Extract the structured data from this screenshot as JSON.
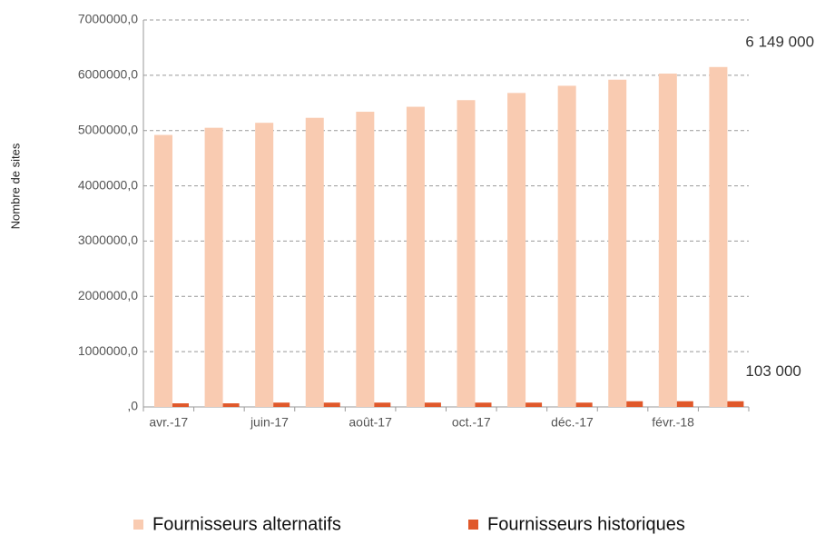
{
  "chart_data": {
    "type": "bar",
    "ylabel": "Nombre de sites",
    "categories": [
      "avr.-17",
      null,
      "juin-17",
      null,
      "août-17",
      null,
      "oct.-17",
      null,
      "déc.-17",
      null,
      "févr.-18",
      null
    ],
    "series": [
      {
        "name": "Fournisseurs alternatifs",
        "color": "#f9cbb1",
        "values": [
          4920000,
          5050000,
          5140000,
          5230000,
          5340000,
          5430000,
          5550000,
          5680000,
          5810000,
          5920000,
          6030000,
          6149000
        ],
        "value_labels": [
          null,
          null,
          null,
          null,
          null,
          null,
          null,
          null,
          null,
          null,
          null,
          "6 149 000"
        ]
      },
      {
        "name": "Fournisseurs historiques",
        "color": "#e0582a",
        "values": [
          65000,
          65000,
          78000,
          78000,
          78000,
          78000,
          78000,
          78000,
          78000,
          103000,
          103000,
          103000
        ],
        "value_labels": [
          null,
          null,
          null,
          null,
          null,
          null,
          null,
          null,
          null,
          null,
          null,
          "103 000"
        ]
      }
    ],
    "ylim": [
      0,
      7000000
    ],
    "yticks": [
      {
        "value": 0,
        "label": ",0"
      },
      {
        "value": 1000000,
        "label": "1000000,0"
      },
      {
        "value": 2000000,
        "label": "2000000,0"
      },
      {
        "value": 3000000,
        "label": "3000000,0"
      },
      {
        "value": 4000000,
        "label": "4000000,0"
      },
      {
        "value": 5000000,
        "label": "5000000,0"
      },
      {
        "value": 6000000,
        "label": "6000000,0"
      },
      {
        "value": 7000000,
        "label": "7000000,0"
      }
    ],
    "grid": true,
    "legend": "bottom"
  }
}
